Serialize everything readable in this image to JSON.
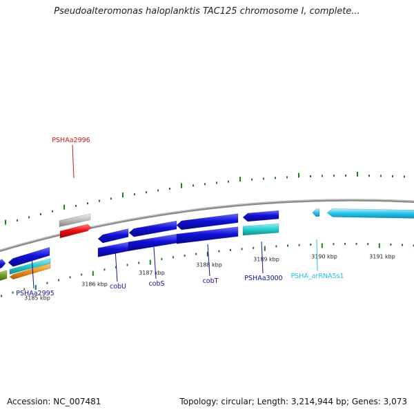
{
  "title": "Pseudoalteromonas haloplanktis TAC125 chromosome I, complete...",
  "footer": {
    "accession": "Accession: NC_007481",
    "topology": "Topology: circular; Length: 3,214,944 bp; Genes: 3,073"
  },
  "colors": {
    "backbone": "#8a8a8a",
    "tick": "#1e7d1e",
    "gene_blue": "#0f10d8",
    "label_blue": "#1010a0",
    "label_red": "#d01818",
    "label_cyan": "#21c4e8",
    "cds_teal": "#20cccc",
    "pseudo_gray": "#bcbcbc",
    "hit_red": "#ee1010",
    "orange": "#f09010",
    "olive": "#6a9a20"
  },
  "map": {
    "tick_labels": [
      "3185 kbp",
      "3186 kbp",
      "3187 kbp",
      "3188 kbp",
      "3189 kbp",
      "3190 kbp",
      "3191 kbp"
    ],
    "gene_labels": [
      {
        "name": "PSHAa2996",
        "color": "red"
      },
      {
        "name": "PSHAa2995",
        "color": "blue"
      },
      {
        "name": "cobU",
        "color": "blue"
      },
      {
        "name": "cobS",
        "color": "blue"
      },
      {
        "name": "cobT",
        "color": "blue"
      },
      {
        "name": "PSHAa3000",
        "color": "blue"
      },
      {
        "name": "PSHA_arRNA5s1",
        "color": "cyan"
      }
    ]
  }
}
